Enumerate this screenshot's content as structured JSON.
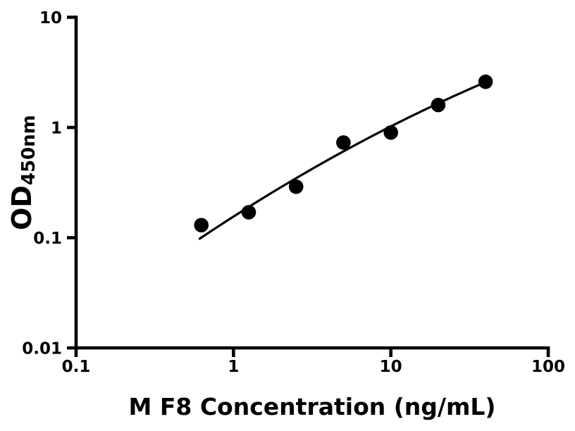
{
  "chart_data": {
    "type": "scatter",
    "title": "",
    "xlabel": "M F8 Concentration (ng/mL)",
    "ylabel_main": "OD",
    "ylabel_sub": "450nm",
    "xscale": "log",
    "yscale": "log",
    "xlim": [
      0.1,
      100
    ],
    "ylim": [
      0.01,
      10
    ],
    "xticks": {
      "values": [
        0.1,
        1,
        10,
        100
      ],
      "labels": [
        "0.1",
        "1",
        "10",
        "100"
      ]
    },
    "yticks": {
      "values": [
        0.01,
        0.1,
        1,
        10
      ],
      "labels": [
        "0.01",
        "0.1",
        "1",
        "10"
      ]
    },
    "grid": false,
    "legend": "none",
    "background_color": "#ffffff",
    "axis_color": "#000000",
    "text_color": "#000000",
    "series": [
      {
        "name": "standard-points",
        "type": "scatter",
        "marker": "filled-circle",
        "color": "#000000",
        "points": [
          [
            0.625,
            0.13
          ],
          [
            1.25,
            0.17
          ],
          [
            2.5,
            0.29
          ],
          [
            5,
            0.73
          ],
          [
            10,
            0.9
          ],
          [
            20,
            1.6
          ],
          [
            40,
            2.6
          ]
        ]
      },
      {
        "name": "fit-curve",
        "type": "line",
        "color": "#000000",
        "fit": {
          "model": "quadratic_loglog",
          "a": -0.8086,
          "b": 0.9124,
          "c": -0.0941,
          "x_range": [
            0.61,
            40
          ]
        }
      }
    ]
  }
}
